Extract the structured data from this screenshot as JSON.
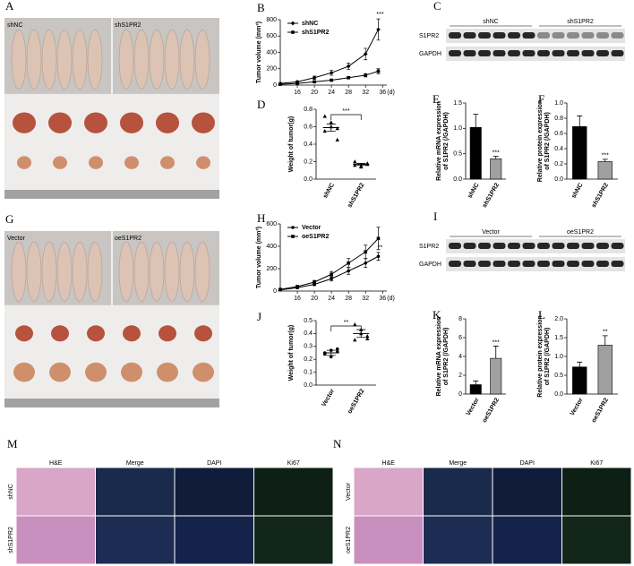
{
  "chart_data": [
    {
      "type": "line",
      "panel": "B",
      "ylabel": "Tumor volume (mm³)",
      "xlabel": "(d)",
      "annotation": "***",
      "x": [
        12,
        16,
        20,
        24,
        28,
        32,
        35
      ],
      "xlim": [
        12,
        37
      ],
      "xticks": [
        16,
        20,
        24,
        28,
        32,
        36
      ],
      "ylim": [
        0,
        800
      ],
      "yticks": [
        0,
        200,
        400,
        600,
        800
      ],
      "series": [
        {
          "name": "shNC",
          "color": "#000000",
          "marker": "diamond",
          "values": [
            20,
            40,
            90,
            150,
            230,
            380,
            680
          ],
          "errors": [
            5,
            10,
            20,
            30,
            40,
            70,
            130
          ]
        },
        {
          "name": "shS1PR2",
          "color": "#000000",
          "marker": "square",
          "values": [
            10,
            20,
            40,
            60,
            90,
            120,
            170
          ],
          "errors": [
            3,
            5,
            8,
            10,
            15,
            20,
            30
          ]
        }
      ]
    },
    {
      "type": "dot",
      "panel": "D",
      "ylabel": "Weight of tumor(g)",
      "annotation": "***",
      "categories": [
        "shNC",
        "shS1PR2"
      ],
      "markers": [
        "triangle",
        "triangle"
      ],
      "points": [
        [
          0.72,
          0.6,
          0.58,
          0.55,
          0.65,
          0.45
        ],
        [
          0.2,
          0.15,
          0.18,
          0.16,
          0.14,
          0.17
        ]
      ],
      "means": [
        0.59,
        0.17
      ],
      "errors": [
        0.04,
        0.01
      ],
      "ylim": [
        0,
        0.8
      ],
      "yticks": [
        {
          "value": 0,
          "label": "0.0"
        },
        0.2,
        0.4,
        0.6,
        0.8
      ]
    },
    {
      "type": "bar",
      "panel": "E",
      "ylabel": [
        "Relative mRNA expression",
        "of S1PR2 (/GAPDH)"
      ],
      "annotation": "***",
      "categories": [
        "shNC",
        "shS1PR2"
      ],
      "values": [
        1.02,
        0.4
      ],
      "errors": [
        0.26,
        0.05
      ],
      "colors": [
        "#000000",
        "#a0a0a0"
      ],
      "ylim": [
        0,
        1.5
      ],
      "yticks": [
        {
          "value": 0,
          "label": "0.0"
        },
        0.5,
        {
          "value": 1,
          "label": "1.0"
        },
        1.5
      ]
    },
    {
      "type": "bar",
      "panel": "F",
      "ylabel": [
        "Relative protein expression",
        "of S1PR2 (/GAPDH)"
      ],
      "annotation": "***",
      "categories": [
        "shNC",
        "shS1PR2"
      ],
      "values": [
        0.69,
        0.23
      ],
      "errors": [
        0.14,
        0.03
      ],
      "colors": [
        "#000000",
        "#a0a0a0"
      ],
      "ylim": [
        0,
        1
      ],
      "yticks": [
        {
          "value": 0,
          "label": "0.0"
        },
        0.2,
        0.4,
        0.6,
        0.8,
        {
          "value": 1,
          "label": "1.0"
        }
      ]
    },
    {
      "type": "line",
      "panel": "H",
      "ylabel": "Tumor volume (mm³)",
      "xlabel": "(d)",
      "annotation": "**",
      "x": [
        12,
        16,
        20,
        24,
        28,
        32,
        35
      ],
      "xlim": [
        12,
        37
      ],
      "xticks": [
        16,
        20,
        24,
        28,
        32,
        36
      ],
      "ylim": [
        0,
        600
      ],
      "yticks": [
        0,
        200,
        400,
        600
      ],
      "series": [
        {
          "name": "Vector",
          "color": "#000000",
          "marker": "circle",
          "values": [
            10,
            30,
            60,
            110,
            180,
            250,
            310
          ],
          "errors": [
            5,
            8,
            12,
            20,
            30,
            40,
            35
          ]
        },
        {
          "name": "oeS1PR2",
          "color": "#000000",
          "marker": "square",
          "values": [
            15,
            40,
            80,
            150,
            250,
            350,
            470
          ],
          "errors": [
            5,
            10,
            15,
            25,
            40,
            60,
            100
          ]
        }
      ]
    },
    {
      "type": "dot",
      "panel": "J",
      "ylabel": "Weight of tumor(g)",
      "annotation": "**",
      "categories": [
        "Vector",
        "oeS1PR2"
      ],
      "markers": [
        "circle",
        "triangle"
      ],
      "points": [
        [
          0.25,
          0.22,
          0.28,
          0.24,
          0.27,
          0.26
        ],
        [
          0.47,
          0.43,
          0.38,
          0.35,
          0.4,
          0.36
        ]
      ],
      "means": [
        0.25,
        0.4
      ],
      "errors": [
        0.02,
        0.03
      ],
      "ylim": [
        0,
        0.5
      ],
      "yticks": [
        {
          "value": 0,
          "label": "0.0"
        },
        0.1,
        0.2,
        0.3,
        0.4,
        0.5
      ]
    },
    {
      "type": "bar",
      "panel": "K",
      "ylabel": [
        "Relative mRNA expression",
        "of S1PR2 (/GAPDH)"
      ],
      "annotation": "***",
      "categories": [
        "Vector",
        "oeS1PR2"
      ],
      "values": [
        1.0,
        3.8
      ],
      "errors": [
        0.4,
        1.3
      ],
      "colors": [
        "#000000",
        "#a0a0a0"
      ],
      "ylim": [
        0,
        8
      ],
      "yticks": [
        0,
        2,
        4,
        6,
        8
      ]
    },
    {
      "type": "bar",
      "panel": "L",
      "ylabel": [
        "Relative protein expression",
        "of S1PR2 (/GAPDH)"
      ],
      "annotation": "**",
      "categories": [
        "Vector",
        "oeS1PR2"
      ],
      "values": [
        0.72,
        1.3
      ],
      "errors": [
        0.13,
        0.25
      ],
      "colors": [
        "#000000",
        "#a0a0a0"
      ],
      "ylim": [
        0,
        2
      ],
      "yticks": [
        {
          "value": 0,
          "label": "0.0"
        },
        0.5,
        {
          "value": 1,
          "label": "1.0"
        },
        1.5,
        {
          "value": 2,
          "label": "2.0"
        }
      ]
    }
  ],
  "photos": [
    {
      "panel": "A",
      "groups": [
        "shNC",
        "shS1PR2"
      ]
    },
    {
      "panel": "G",
      "groups": [
        "Vector",
        "oeS1PR2"
      ]
    }
  ],
  "blots": [
    {
      "panel": "C",
      "groups": [
        "shNC",
        "shS1PR2"
      ],
      "bands": [
        "S1PR2",
        "GAPDH"
      ]
    },
    {
      "panel": "I",
      "groups": [
        "Vector",
        "oeS1PR2"
      ],
      "bands": [
        "S1PR2",
        "GAPDH"
      ]
    }
  ],
  "histology": [
    {
      "panel": "M",
      "columns": [
        "H&E",
        "Merge",
        "DAPI",
        "Ki67"
      ],
      "rows": [
        "shNC",
        "shS1PR2"
      ]
    },
    {
      "panel": "N",
      "columns": [
        "H&E",
        "Merge",
        "DAPI",
        "Ki67"
      ],
      "rows": [
        "Vector",
        "oeS1PR2"
      ]
    }
  ]
}
